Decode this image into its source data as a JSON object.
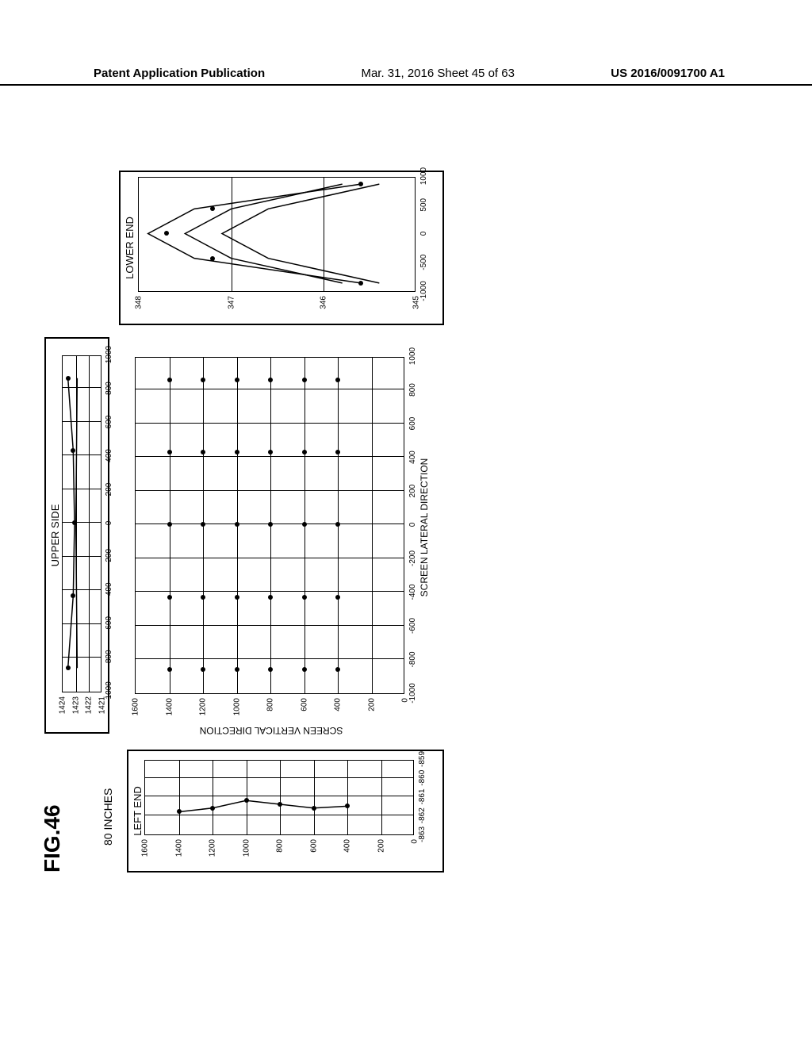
{
  "header": {
    "left": "Patent Application Publication",
    "mid": "Mar. 31, 2016  Sheet 45 of 63",
    "right": "US 2016/0091700 A1"
  },
  "figure": {
    "label": "FIG.46",
    "size_label": "80 INCHES"
  },
  "panel_left": {
    "title": "LEFT END",
    "xlim": [
      -863,
      -859
    ],
    "ylim": [
      0,
      1600
    ],
    "xticks": [
      -863,
      -862,
      -861,
      -860,
      -859
    ],
    "yticks": [
      0,
      200,
      400,
      600,
      800,
      1000,
      1200,
      1400,
      1600
    ],
    "points": [
      {
        "x": -861.8,
        "y": 1400
      },
      {
        "x": -861.6,
        "y": 1200
      },
      {
        "x": -861.2,
        "y": 1000
      },
      {
        "x": -861.4,
        "y": 800
      },
      {
        "x": -861.6,
        "y": 600
      },
      {
        "x": -861.5,
        "y": 400
      }
    ],
    "line": [
      {
        "x": -861.8,
        "y": 1400
      },
      {
        "x": -861.6,
        "y": 1200
      },
      {
        "x": -861.2,
        "y": 1000
      },
      {
        "x": -861.4,
        "y": 800
      },
      {
        "x": -861.6,
        "y": 600
      },
      {
        "x": -861.5,
        "y": 400
      }
    ]
  },
  "panel_center": {
    "xlim": [
      -1000,
      1000
    ],
    "ylim": [
      0,
      1600
    ],
    "xticks": [
      -1000,
      -800,
      -600,
      -400,
      -200,
      0,
      200,
      400,
      600,
      800,
      1000
    ],
    "yticks": [
      0,
      200,
      400,
      600,
      800,
      1000,
      1200,
      1400,
      1600
    ],
    "xlabel": "SCREEN LATERAL DIRECTION",
    "ylabel": "SCREEN VERTICAL DIRECTION",
    "vgrid": [
      -800,
      -600,
      -400,
      -200,
      0,
      200,
      400,
      600,
      800
    ],
    "hgrid": [
      200,
      400,
      600,
      800,
      1000,
      1200,
      1400
    ],
    "points": [
      {
        "x": -860,
        "y": 400
      },
      {
        "x": -430,
        "y": 400
      },
      {
        "x": 0,
        "y": 400
      },
      {
        "x": 430,
        "y": 400
      },
      {
        "x": 860,
        "y": 400
      },
      {
        "x": -860,
        "y": 600
      },
      {
        "x": -430,
        "y": 600
      },
      {
        "x": 0,
        "y": 600
      },
      {
        "x": 430,
        "y": 600
      },
      {
        "x": 860,
        "y": 600
      },
      {
        "x": -860,
        "y": 800
      },
      {
        "x": -430,
        "y": 800
      },
      {
        "x": 0,
        "y": 800
      },
      {
        "x": 430,
        "y": 800
      },
      {
        "x": 860,
        "y": 800
      },
      {
        "x": -860,
        "y": 1000
      },
      {
        "x": -430,
        "y": 1000
      },
      {
        "x": 0,
        "y": 1000
      },
      {
        "x": 430,
        "y": 1000
      },
      {
        "x": 860,
        "y": 1000
      },
      {
        "x": -860,
        "y": 1200
      },
      {
        "x": -430,
        "y": 1200
      },
      {
        "x": 0,
        "y": 1200
      },
      {
        "x": 430,
        "y": 1200
      },
      {
        "x": 860,
        "y": 1200
      },
      {
        "x": -860,
        "y": 1400
      },
      {
        "x": -430,
        "y": 1400
      },
      {
        "x": 0,
        "y": 1400
      },
      {
        "x": 430,
        "y": 1400
      },
      {
        "x": 860,
        "y": 1400
      }
    ]
  },
  "panel_upper": {
    "title": "UPPER SIDE",
    "xlim": [
      -1000,
      1000
    ],
    "ylim": [
      1421,
      1424
    ],
    "xticks": [
      -1000,
      -800,
      -600,
      -400,
      -200,
      0,
      200,
      400,
      600,
      800,
      1000
    ],
    "yticks": [
      1421,
      1422,
      1423,
      1424
    ],
    "points": [
      {
        "x": -860,
        "y": 1423.6
      },
      {
        "x": -430,
        "y": 1423.2
      },
      {
        "x": 0,
        "y": 1423.1
      },
      {
        "x": 430,
        "y": 1423.2
      },
      {
        "x": 860,
        "y": 1423.6
      }
    ],
    "curve_extra": [
      {
        "x": -860,
        "y": 1422.9
      },
      {
        "x": 0,
        "y": 1423.0
      },
      {
        "x": 860,
        "y": 1422.9
      }
    ]
  },
  "panel_lower": {
    "title": "LOWER END",
    "xlim": [
      -1000,
      1000
    ],
    "ylim": [
      345,
      348
    ],
    "xticks": [
      -1000,
      -500,
      0,
      500,
      1000
    ],
    "yticks": [
      345,
      346,
      347,
      348
    ],
    "curves": [
      [
        {
          "x": -860,
          "y": 345.6
        },
        {
          "x": -430,
          "y": 347.4
        },
        {
          "x": 0,
          "y": 347.9
        },
        {
          "x": 430,
          "y": 347.4
        },
        {
          "x": 860,
          "y": 345.6
        }
      ],
      [
        {
          "x": -860,
          "y": 345.8
        },
        {
          "x": -430,
          "y": 347.0
        },
        {
          "x": 0,
          "y": 347.5
        },
        {
          "x": 430,
          "y": 347.0
        },
        {
          "x": 860,
          "y": 345.8
        }
      ],
      [
        {
          "x": -860,
          "y": 345.4
        },
        {
          "x": -430,
          "y": 346.6
        },
        {
          "x": 0,
          "y": 347.1
        },
        {
          "x": 430,
          "y": 346.6
        },
        {
          "x": 860,
          "y": 345.4
        }
      ]
    ],
    "points": [
      {
        "x": -860,
        "y": 345.6
      },
      {
        "x": -430,
        "y": 347.2
      },
      {
        "x": 0,
        "y": 347.7
      },
      {
        "x": 430,
        "y": 347.2
      },
      {
        "x": 860,
        "y": 345.6
      }
    ]
  },
  "colors": {
    "line": "#000000",
    "grid": "#000000",
    "point": "#000000",
    "background": "#ffffff"
  }
}
